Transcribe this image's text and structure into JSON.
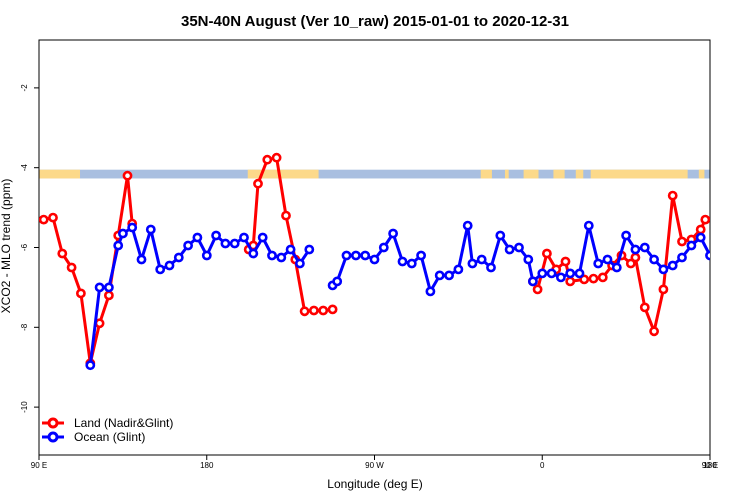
{
  "chart_data": {
    "type": "line",
    "title": "35N-40N August (Ver 10_raw)   2015-01-01 to 2020-12-31",
    "xlabel": "Longitude (deg E)",
    "ylabel": "XCO2 - MLO trend (ppm)",
    "xlim": [
      90,
      450
    ],
    "ylim": [
      -11.2,
      -0.8
    ],
    "x_ticks": [
      {
        "value": 90,
        "label": "90 E"
      },
      {
        "value": 180,
        "label": "180"
      },
      {
        "value": 270,
        "label": "90 W"
      },
      {
        "value": 360,
        "label": "0"
      },
      {
        "value": 450,
        "label": "90 E"
      }
    ],
    "x_ticks_extra": [
      {
        "value": 450,
        "label": "180"
      }
    ],
    "y_ticks": [
      {
        "value": -2,
        "label": "-2"
      },
      {
        "value": -4,
        "label": "-4"
      },
      {
        "value": -6,
        "label": "-6"
      },
      {
        "value": -8,
        "label": "-8"
      },
      {
        "value": -10,
        "label": "-10"
      }
    ],
    "mask_band": {
      "y_top": -4.05,
      "y_bottom": -4.27,
      "land_color": "#fcd98a",
      "ocean_color": "#a9bfe0"
    },
    "legend_position": "bottom-left",
    "series": [
      {
        "name": "Land (Nadir&Glint)",
        "color": "#ff0000",
        "segments": [
          [
            [
              92.5,
              -5.3
            ],
            [
              97.5,
              -5.25
            ],
            [
              102.5,
              -6.15
            ],
            [
              107.5,
              -6.5
            ],
            [
              112.5,
              -7.15
            ],
            [
              117.5,
              -8.9
            ],
            [
              122.5,
              -7.9
            ],
            [
              127.5,
              -7.2
            ],
            [
              132.5,
              -5.7
            ],
            [
              137.5,
              -4.2
            ],
            [
              140,
              -5.4
            ]
          ],
          [
            [
              202.5,
              -6.05
            ],
            [
              205,
              -5.95
            ],
            [
              207.5,
              -4.4
            ],
            [
              212.5,
              -3.8
            ],
            [
              217.5,
              -3.75
            ],
            [
              222.5,
              -5.2
            ],
            [
              227.5,
              -6.3
            ],
            [
              232.5,
              -7.6
            ],
            [
              237.5,
              -7.58
            ],
            [
              242.5,
              -7.58
            ],
            [
              247.5,
              -7.55
            ]
          ],
          [
            [
              355,
              -6.85
            ],
            [
              357.5,
              -7.05
            ],
            [
              362.5,
              -6.15
            ],
            [
              367.5,
              -6.55
            ],
            [
              372.5,
              -6.35
            ],
            [
              375,
              -6.85
            ],
            [
              382.5,
              -6.8
            ],
            [
              387.5,
              -6.78
            ],
            [
              392.5,
              -6.75
            ],
            [
              397.5,
              -6.45
            ],
            [
              402.5,
              -6.2
            ],
            [
              407.5,
              -6.4
            ],
            [
              410,
              -6.25
            ],
            [
              415,
              -7.5
            ],
            [
              420,
              -8.1
            ],
            [
              425,
              -7.05
            ],
            [
              430,
              -4.7
            ],
            [
              435,
              -5.85
            ],
            [
              440,
              -5.8
            ],
            [
              445,
              -5.55
            ],
            [
              447.5,
              -5.3
            ],
            [
              452.5,
              -5.25
            ],
            [
              457.5,
              -6.15
            ],
            [
              462.5,
              -6.5
            ],
            [
              467.5,
              -7.15
            ],
            [
              472.5,
              -8.9
            ],
            [
              477.5,
              -7.9
            ],
            [
              482.5,
              -7.2
            ],
            [
              487.5,
              -5.7
            ],
            [
              492.5,
              -4.2
            ],
            [
              495,
              -5.4
            ]
          ]
        ]
      },
      {
        "name": "Ocean (Glint)",
        "color": "#0000ff",
        "segments": [
          [
            [
              117.5,
              -8.95
            ],
            [
              122.5,
              -7.0
            ],
            [
              127.5,
              -7.0
            ],
            [
              132.5,
              -5.95
            ],
            [
              135,
              -5.65
            ],
            [
              140,
              -5.5
            ],
            [
              145,
              -6.3
            ],
            [
              150,
              -5.55
            ],
            [
              155,
              -6.55
            ],
            [
              160,
              -6.45
            ],
            [
              165,
              -6.25
            ],
            [
              170,
              -5.95
            ],
            [
              175,
              -5.75
            ],
            [
              180,
              -6.2
            ],
            [
              185,
              -5.7
            ],
            [
              190,
              -5.9
            ],
            [
              195,
              -5.9
            ],
            [
              200,
              -5.75
            ],
            [
              205,
              -6.15
            ],
            [
              210,
              -5.75
            ],
            [
              215,
              -6.2
            ],
            [
              220,
              -6.25
            ],
            [
              225,
              -6.05
            ],
            [
              230,
              -6.4
            ],
            [
              235,
              -6.05
            ]
          ],
          [
            [
              247.5,
              -6.95
            ],
            [
              250,
              -6.85
            ],
            [
              255,
              -6.2
            ],
            [
              260,
              -6.2
            ],
            [
              265,
              -6.2
            ],
            [
              270,
              -6.3
            ],
            [
              275,
              -6.0
            ],
            [
              280,
              -5.65
            ],
            [
              285,
              -6.35
            ],
            [
              290,
              -6.4
            ],
            [
              295,
              -6.2
            ],
            [
              300,
              -7.1
            ],
            [
              305,
              -6.7
            ],
            [
              310,
              -6.7
            ],
            [
              315,
              -6.55
            ],
            [
              320,
              -5.45
            ],
            [
              322.5,
              -6.4
            ],
            [
              327.5,
              -6.3
            ],
            [
              332.5,
              -6.5
            ],
            [
              337.5,
              -5.7
            ],
            [
              342.5,
              -6.05
            ],
            [
              347.5,
              -6.0
            ],
            [
              352.5,
              -6.3
            ],
            [
              355,
              -6.85
            ],
            [
              360,
              -6.65
            ],
            [
              365,
              -6.65
            ],
            [
              370,
              -6.75
            ],
            [
              375,
              -6.65
            ],
            [
              380,
              -6.65
            ],
            [
              385,
              -5.45
            ],
            [
              390,
              -6.4
            ],
            [
              395,
              -6.3
            ],
            [
              400,
              -6.5
            ],
            [
              405,
              -5.7
            ],
            [
              410,
              -6.05
            ],
            [
              415,
              -6.0
            ],
            [
              420,
              -6.3
            ],
            [
              425,
              -6.55
            ],
            [
              430,
              -6.45
            ],
            [
              435,
              -6.25
            ],
            [
              440,
              -5.95
            ],
            [
              445,
              -5.75
            ],
            [
              450,
              -6.2
            ]
          ]
        ]
      }
    ]
  }
}
